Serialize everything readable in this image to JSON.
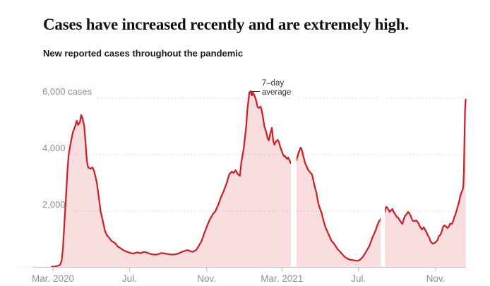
{
  "header": {
    "title": "Cases have increased recently and are extremely high.",
    "subtitle": "New reported cases throughout the pandemic"
  },
  "chart_data": {
    "type": "area",
    "title": "Cases have increased recently and are extremely high.",
    "subtitle": "New reported cases throughout the pandemic",
    "legend_position": "none",
    "grid": "dashed-horizontal",
    "y_axis": {
      "unit": "cases",
      "range": [
        0,
        6500
      ],
      "gridlines": [
        {
          "value": 2000,
          "label": "2,000"
        },
        {
          "value": 4000,
          "label": "4,000"
        },
        {
          "value": 6000,
          "label": "6,000 cases"
        }
      ]
    },
    "x_axis": {
      "start": "2020-02-28",
      "end": "2021-12-19",
      "ticks": [
        {
          "date": "2020-03-01",
          "label": "Mar. 2020"
        },
        {
          "date": "2020-07-01",
          "label": "Jul."
        },
        {
          "date": "2020-11-01",
          "label": "Nov."
        },
        {
          "date": "2021-03-01",
          "label": "Mar. 2021"
        },
        {
          "date": "2021-07-01",
          "label": "Jul."
        },
        {
          "date": "2021-11-01",
          "label": "Nov."
        }
      ]
    },
    "annotation": {
      "lines": [
        "7–day",
        "average"
      ],
      "anchor_date": "2021-01-10",
      "anchor_value": 6250
    },
    "gaps": [
      {
        "from": "2021-03-16",
        "to": "2021-03-23"
      },
      {
        "from": "2021-08-06",
        "to": "2021-08-11"
      }
    ],
    "colors": {
      "line": "#d21f26",
      "fill": "rgba(208,32,38,0.15)",
      "gridline": "#d2d2d2",
      "axis": "#c8c8c8",
      "tick": "#b9b9b9",
      "axis_label": "#8f8f8f",
      "annotation": "#333333"
    },
    "series": [
      {
        "name": "7-day average of new reported cases",
        "points": [
          [
            "2020-02-28",
            30
          ],
          [
            "2020-03-05",
            40
          ],
          [
            "2020-03-12",
            90
          ],
          [
            "2020-03-15",
            250
          ],
          [
            "2020-03-17",
            700
          ],
          [
            "2020-03-19",
            1500
          ],
          [
            "2020-03-22",
            2600
          ],
          [
            "2020-03-24",
            3400
          ],
          [
            "2020-03-26",
            4000
          ],
          [
            "2020-03-30",
            4500
          ],
          [
            "2020-04-02",
            4800
          ],
          [
            "2020-04-06",
            5050
          ],
          [
            "2020-04-08",
            5200
          ],
          [
            "2020-04-10",
            5050
          ],
          [
            "2020-04-13",
            5150
          ],
          [
            "2020-04-15",
            5400
          ],
          [
            "2020-04-17",
            5300
          ],
          [
            "2020-04-20",
            5000
          ],
          [
            "2020-04-22",
            4400
          ],
          [
            "2020-04-24",
            3800
          ],
          [
            "2020-04-26",
            3550
          ],
          [
            "2020-04-30",
            3500
          ],
          [
            "2020-05-03",
            3550
          ],
          [
            "2020-05-06",
            3400
          ],
          [
            "2020-05-10",
            3000
          ],
          [
            "2020-05-13",
            2500
          ],
          [
            "2020-05-16",
            2000
          ],
          [
            "2020-05-20",
            1600
          ],
          [
            "2020-05-23",
            1300
          ],
          [
            "2020-05-26",
            1150
          ],
          [
            "2020-05-30",
            1050
          ],
          [
            "2020-06-02",
            950
          ],
          [
            "2020-06-06",
            900
          ],
          [
            "2020-06-09",
            850
          ],
          [
            "2020-06-12",
            750
          ],
          [
            "2020-06-16",
            700
          ],
          [
            "2020-06-21",
            620
          ],
          [
            "2020-06-27",
            560
          ],
          [
            "2020-07-02",
            520
          ],
          [
            "2020-07-07",
            500
          ],
          [
            "2020-07-13",
            540
          ],
          [
            "2020-07-19",
            510
          ],
          [
            "2020-07-24",
            560
          ],
          [
            "2020-07-30",
            520
          ],
          [
            "2020-08-04",
            480
          ],
          [
            "2020-08-10",
            460
          ],
          [
            "2020-08-15",
            470
          ],
          [
            "2020-08-21",
            520
          ],
          [
            "2020-08-26",
            500
          ],
          [
            "2020-09-01",
            480
          ],
          [
            "2020-09-06",
            460
          ],
          [
            "2020-09-12",
            470
          ],
          [
            "2020-09-17",
            500
          ],
          [
            "2020-09-23",
            560
          ],
          [
            "2020-09-28",
            600
          ],
          [
            "2020-10-02",
            620
          ],
          [
            "2020-10-06",
            580
          ],
          [
            "2020-10-10",
            560
          ],
          [
            "2020-10-15",
            620
          ],
          [
            "2020-10-19",
            750
          ],
          [
            "2020-10-24",
            950
          ],
          [
            "2020-10-28",
            1200
          ],
          [
            "2020-11-02",
            1500
          ],
          [
            "2020-11-06",
            1700
          ],
          [
            "2020-11-11",
            1900
          ],
          [
            "2020-11-15",
            2000
          ],
          [
            "2020-11-19",
            2200
          ],
          [
            "2020-11-24",
            2500
          ],
          [
            "2020-11-28",
            2700
          ],
          [
            "2020-12-03",
            3000
          ],
          [
            "2020-12-07",
            3300
          ],
          [
            "2020-12-11",
            3400
          ],
          [
            "2020-12-14",
            3350
          ],
          [
            "2020-12-17",
            3450
          ],
          [
            "2020-12-21",
            3300
          ],
          [
            "2020-12-24",
            3250
          ],
          [
            "2020-12-26",
            3700
          ],
          [
            "2020-12-30",
            4200
          ],
          [
            "2021-01-01",
            4600
          ],
          [
            "2021-01-03",
            5000
          ],
          [
            "2021-01-05",
            5600
          ],
          [
            "2021-01-08",
            6200
          ],
          [
            "2021-01-10",
            6250
          ],
          [
            "2021-01-12",
            6100
          ],
          [
            "2021-01-14",
            6200
          ],
          [
            "2021-01-17",
            6050
          ],
          [
            "2021-01-19",
            5900
          ],
          [
            "2021-01-21",
            5700
          ],
          [
            "2021-01-23",
            5650
          ],
          [
            "2021-01-26",
            5700
          ],
          [
            "2021-01-28",
            5550
          ],
          [
            "2021-01-30",
            5300
          ],
          [
            "2021-02-01",
            5000
          ],
          [
            "2021-02-04",
            4800
          ],
          [
            "2021-02-06",
            4600
          ],
          [
            "2021-02-08",
            4500
          ],
          [
            "2021-02-10",
            4700
          ],
          [
            "2021-02-13",
            4950
          ],
          [
            "2021-02-15",
            4500
          ],
          [
            "2021-02-17",
            4350
          ],
          [
            "2021-02-19",
            4450
          ],
          [
            "2021-02-22",
            4525
          ],
          [
            "2021-02-24",
            4450
          ],
          [
            "2021-02-26",
            4300
          ],
          [
            "2021-03-02",
            4050
          ],
          [
            "2021-03-04",
            3950
          ],
          [
            "2021-03-06",
            3950
          ],
          [
            "2021-03-09",
            3850
          ],
          [
            "2021-03-11",
            3900
          ],
          [
            "2021-03-13",
            3800
          ],
          [
            "2021-03-15",
            3700
          ],
          [
            "2021-03-24",
            3800
          ],
          [
            "2021-03-26",
            3950
          ],
          [
            "2021-03-28",
            4100
          ],
          [
            "2021-03-31",
            4250
          ],
          [
            "2021-04-02",
            4150
          ],
          [
            "2021-04-04",
            3950
          ],
          [
            "2021-04-07",
            3700
          ],
          [
            "2021-04-09",
            3600
          ],
          [
            "2021-04-11",
            3500
          ],
          [
            "2021-04-13",
            3425
          ],
          [
            "2021-04-16",
            3350
          ],
          [
            "2021-04-18",
            3300
          ],
          [
            "2021-04-20",
            3100
          ],
          [
            "2021-04-22",
            2900
          ],
          [
            "2021-04-25",
            2650
          ],
          [
            "2021-04-27",
            2400
          ],
          [
            "2021-04-29",
            2200
          ],
          [
            "2021-05-03",
            1950
          ],
          [
            "2021-05-06",
            1700
          ],
          [
            "2021-05-09",
            1450
          ],
          [
            "2021-05-13",
            1250
          ],
          [
            "2021-05-16",
            1100
          ],
          [
            "2021-05-19",
            950
          ],
          [
            "2021-05-23",
            850
          ],
          [
            "2021-05-26",
            750
          ],
          [
            "2021-05-29",
            650
          ],
          [
            "2021-06-02",
            560
          ],
          [
            "2021-06-05",
            480
          ],
          [
            "2021-06-08",
            400
          ],
          [
            "2021-06-12",
            340
          ],
          [
            "2021-06-15",
            300
          ],
          [
            "2021-06-18",
            280
          ],
          [
            "2021-06-22",
            265
          ],
          [
            "2021-06-25",
            255
          ],
          [
            "2021-06-28",
            245
          ],
          [
            "2021-07-01",
            250
          ],
          [
            "2021-07-04",
            290
          ],
          [
            "2021-07-08",
            380
          ],
          [
            "2021-07-11",
            480
          ],
          [
            "2021-07-14",
            600
          ],
          [
            "2021-07-18",
            750
          ],
          [
            "2021-07-21",
            925
          ],
          [
            "2021-07-24",
            1100
          ],
          [
            "2021-07-28",
            1300
          ],
          [
            "2021-07-31",
            1500
          ],
          [
            "2021-08-03",
            1650
          ],
          [
            "2021-08-05",
            1700
          ],
          [
            "2021-08-12",
            1975
          ],
          [
            "2021-08-14",
            2150
          ],
          [
            "2021-08-16",
            2125
          ],
          [
            "2021-08-18",
            2050
          ],
          [
            "2021-08-20",
            1975
          ],
          [
            "2021-08-22",
            2025
          ],
          [
            "2021-08-24",
            2075
          ],
          [
            "2021-08-26",
            1975
          ],
          [
            "2021-08-29",
            1875
          ],
          [
            "2021-08-31",
            1800
          ],
          [
            "2021-09-02",
            1775
          ],
          [
            "2021-09-04",
            1700
          ],
          [
            "2021-09-07",
            1600
          ],
          [
            "2021-09-09",
            1550
          ],
          [
            "2021-09-11",
            1700
          ],
          [
            "2021-09-13",
            1825
          ],
          [
            "2021-09-16",
            1900
          ],
          [
            "2021-09-18",
            1975
          ],
          [
            "2021-09-20",
            1925
          ],
          [
            "2021-09-22",
            1850
          ],
          [
            "2021-09-25",
            1675
          ],
          [
            "2021-09-27",
            1650
          ],
          [
            "2021-09-29",
            1650
          ],
          [
            "2021-10-01",
            1675
          ],
          [
            "2021-10-04",
            1600
          ],
          [
            "2021-10-06",
            1500
          ],
          [
            "2021-10-08",
            1425
          ],
          [
            "2021-10-10",
            1350
          ],
          [
            "2021-10-13",
            1425
          ],
          [
            "2021-10-15",
            1350
          ],
          [
            "2021-10-17",
            1275
          ],
          [
            "2021-10-19",
            1175
          ],
          [
            "2021-10-22",
            1050
          ],
          [
            "2021-10-24",
            925
          ],
          [
            "2021-10-26",
            875
          ],
          [
            "2021-10-28",
            850
          ],
          [
            "2021-11-01",
            900
          ],
          [
            "2021-11-04",
            975
          ],
          [
            "2021-11-06",
            1100
          ],
          [
            "2021-11-09",
            1175
          ],
          [
            "2021-11-11",
            1300
          ],
          [
            "2021-11-13",
            1450
          ],
          [
            "2021-11-15",
            1500
          ],
          [
            "2021-11-18",
            1450
          ],
          [
            "2021-11-20",
            1400
          ],
          [
            "2021-11-22",
            1450
          ],
          [
            "2021-11-24",
            1550
          ],
          [
            "2021-11-27",
            1550
          ],
          [
            "2021-11-29",
            1650
          ],
          [
            "2021-12-01",
            1800
          ],
          [
            "2021-12-03",
            1900
          ],
          [
            "2021-12-06",
            2150
          ],
          [
            "2021-12-08",
            2300
          ],
          [
            "2021-12-10",
            2500
          ],
          [
            "2021-12-12",
            2650
          ],
          [
            "2021-12-14",
            2750
          ],
          [
            "2021-12-15",
            2850
          ],
          [
            "2021-12-16",
            3400
          ],
          [
            "2021-12-17",
            4600
          ],
          [
            "2021-12-18",
            5600
          ],
          [
            "2021-12-19",
            5950
          ]
        ]
      }
    ]
  }
}
